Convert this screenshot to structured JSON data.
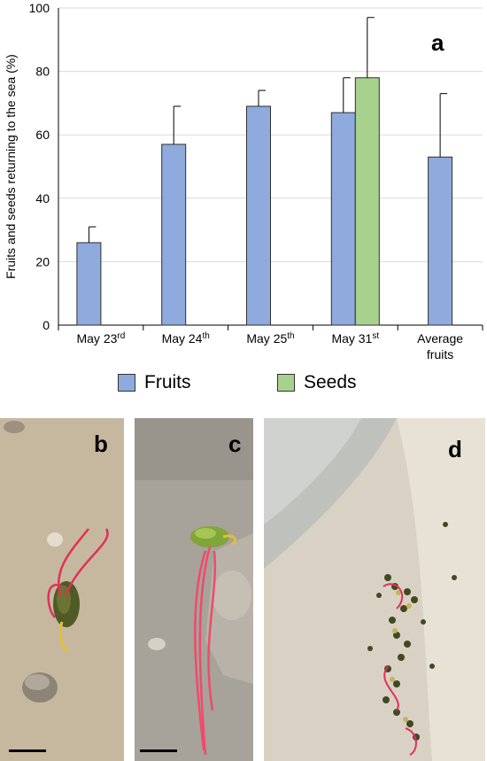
{
  "figure": {
    "panel_a": "a",
    "panel_b": "b",
    "panel_c": "c",
    "panel_d": "d"
  },
  "chart_data": {
    "type": "bar",
    "ylabel": "Fruits and seeds returning to the sea (%)",
    "ylim": [
      0,
      100
    ],
    "yticks": [
      "0",
      "20",
      "40",
      "60",
      "80",
      "100"
    ],
    "categories": [
      {
        "main": "May 23",
        "sup": "rd",
        "line2": ""
      },
      {
        "main": "May 24",
        "sup": "th",
        "line2": ""
      },
      {
        "main": "May 25",
        "sup": "th",
        "line2": ""
      },
      {
        "main": "May 31",
        "sup": "st",
        "line2": ""
      },
      {
        "main": "Average",
        "sup": "",
        "line2": "fruits"
      }
    ],
    "series": [
      {
        "name": "Fruits",
        "color": "#8FAADC",
        "values": [
          26,
          57,
          69,
          67,
          53
        ],
        "error": [
          5,
          12,
          5,
          11,
          20
        ]
      },
      {
        "name": "Seeds",
        "color": "#A9D18E",
        "values": [
          null,
          null,
          null,
          78,
          null
        ],
        "error": [
          null,
          null,
          null,
          19,
          null
        ]
      }
    ],
    "grid": true,
    "legend_position": "bottom"
  }
}
